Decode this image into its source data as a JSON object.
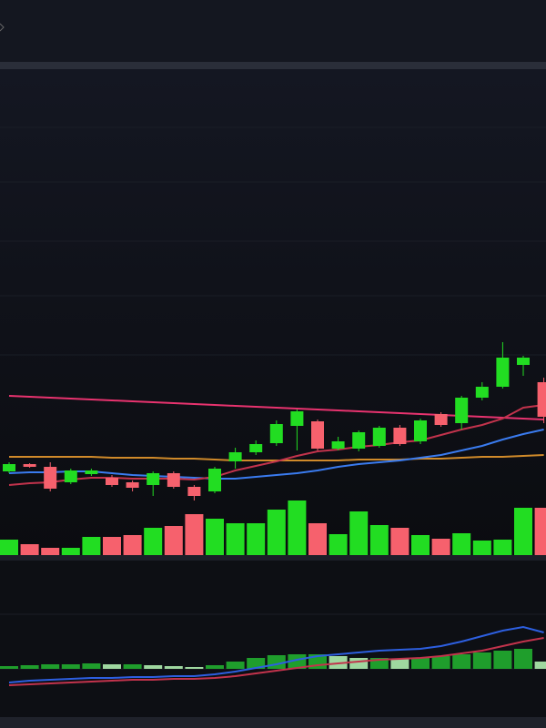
{
  "chart_data": [
    {
      "type": "candlestick",
      "ylim": [
        0,
        530
      ],
      "up_color": "#22dd22",
      "down_color": "#f6616d",
      "open": [
        92,
        100,
        97,
        80,
        89,
        85,
        80,
        77,
        90,
        75,
        70,
        103,
        113,
        123,
        142,
        147,
        117,
        117,
        120,
        140,
        125,
        155,
        145,
        173,
        185,
        209,
        190
      ],
      "close": [
        100,
        97,
        73,
        93,
        93,
        77,
        74,
        90,
        75,
        65,
        95,
        113,
        122,
        144,
        158,
        117,
        125,
        135,
        140,
        122,
        148,
        143,
        173,
        185,
        217,
        217,
        152
      ],
      "high": [
        102,
        101,
        102,
        95,
        95,
        88,
        82,
        92,
        92,
        77,
        97,
        118,
        126,
        148,
        160,
        149,
        130,
        137,
        142,
        143,
        150,
        157,
        175,
        190,
        234,
        219,
        195
      ],
      "low": [
        90,
        96,
        70,
        78,
        87,
        75,
        70,
        65,
        73,
        60,
        68,
        95,
        110,
        120,
        115,
        115,
        115,
        114,
        118,
        120,
        122,
        141,
        138,
        170,
        183,
        197,
        145
      ],
      "volume": [
        17,
        12,
        8,
        8,
        20,
        20,
        22,
        30,
        32,
        45,
        40,
        35,
        35,
        50,
        60,
        35,
        23,
        48,
        33,
        30,
        22,
        18,
        24,
        16,
        17,
        52,
        52
      ],
      "series": [
        {
          "color": "#e8336f",
          "values": [
            175,
            174,
            173,
            172,
            171,
            170,
            169,
            168,
            167,
            166,
            165,
            164,
            163,
            162,
            161,
            160,
            159,
            158,
            157,
            156,
            155,
            154,
            153,
            152,
            151,
            150,
            149
          ]
        },
        {
          "color": "#d08a2a",
          "values": [
            108,
            108,
            108,
            108,
            108,
            107,
            107,
            107,
            106,
            106,
            105,
            104,
            104,
            104,
            104,
            104,
            104,
            105,
            105,
            105,
            106,
            106,
            107,
            108,
            108,
            109,
            110
          ]
        },
        {
          "color": "#3a7bef",
          "values": [
            90,
            91,
            91,
            92,
            92,
            90,
            88,
            87,
            86,
            85,
            84,
            84,
            86,
            88,
            90,
            93,
            97,
            100,
            102,
            104,
            107,
            110,
            115,
            120,
            127,
            133,
            138
          ]
        },
        {
          "color": "#c2334c",
          "values": [
            77,
            79,
            80,
            83,
            85,
            85,
            84,
            84,
            84,
            83,
            86,
            93,
            98,
            103,
            109,
            114,
            116,
            119,
            121,
            124,
            126,
            132,
            138,
            143,
            150,
            162,
            165
          ]
        }
      ]
    },
    {
      "type": "macd",
      "ylim": [
        -55,
        115
      ],
      "histogram": [
        3,
        4,
        5,
        5,
        6,
        5,
        5,
        4,
        3,
        2,
        4,
        8,
        12,
        15,
        16,
        16,
        14,
        12,
        12,
        11,
        12,
        14,
        16,
        18,
        20,
        22,
        8
      ],
      "up_color": "#1f9e2c",
      "fade_color": "#9fd8a0",
      "series": [
        {
          "color": "#2d5fe0",
          "values": [
            -15,
            -13,
            -12,
            -11,
            -10,
            -10,
            -9,
            -9,
            -8,
            -8,
            -6,
            -3,
            1,
            5,
            10,
            14,
            16,
            18,
            20,
            21,
            22,
            25,
            30,
            36,
            42,
            46,
            40
          ]
        },
        {
          "color": "#c2334c",
          "values": [
            -18,
            -17,
            -16,
            -15,
            -14,
            -13,
            -12,
            -12,
            -11,
            -11,
            -10,
            -8,
            -5,
            -2,
            1,
            4,
            6,
            8,
            10,
            11,
            12,
            14,
            17,
            20,
            25,
            30,
            34
          ]
        }
      ]
    }
  ]
}
